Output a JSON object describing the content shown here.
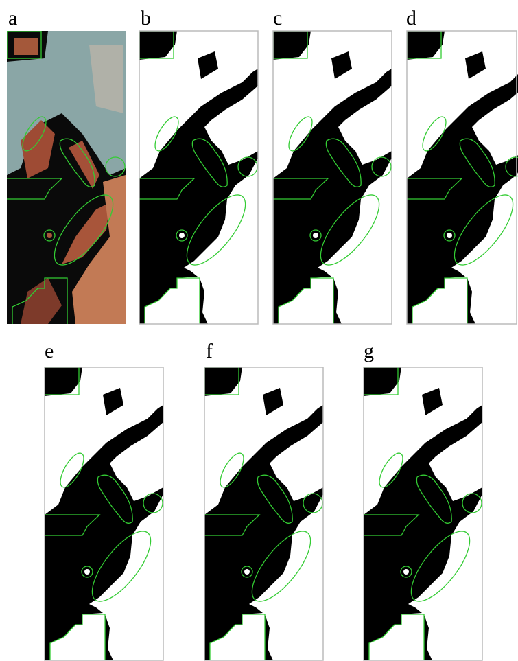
{
  "panels": [
    {
      "label": "a"
    },
    {
      "label": "b"
    },
    {
      "label": "c"
    },
    {
      "label": "d"
    },
    {
      "label": "e"
    },
    {
      "label": "f"
    },
    {
      "label": "g"
    }
  ]
}
